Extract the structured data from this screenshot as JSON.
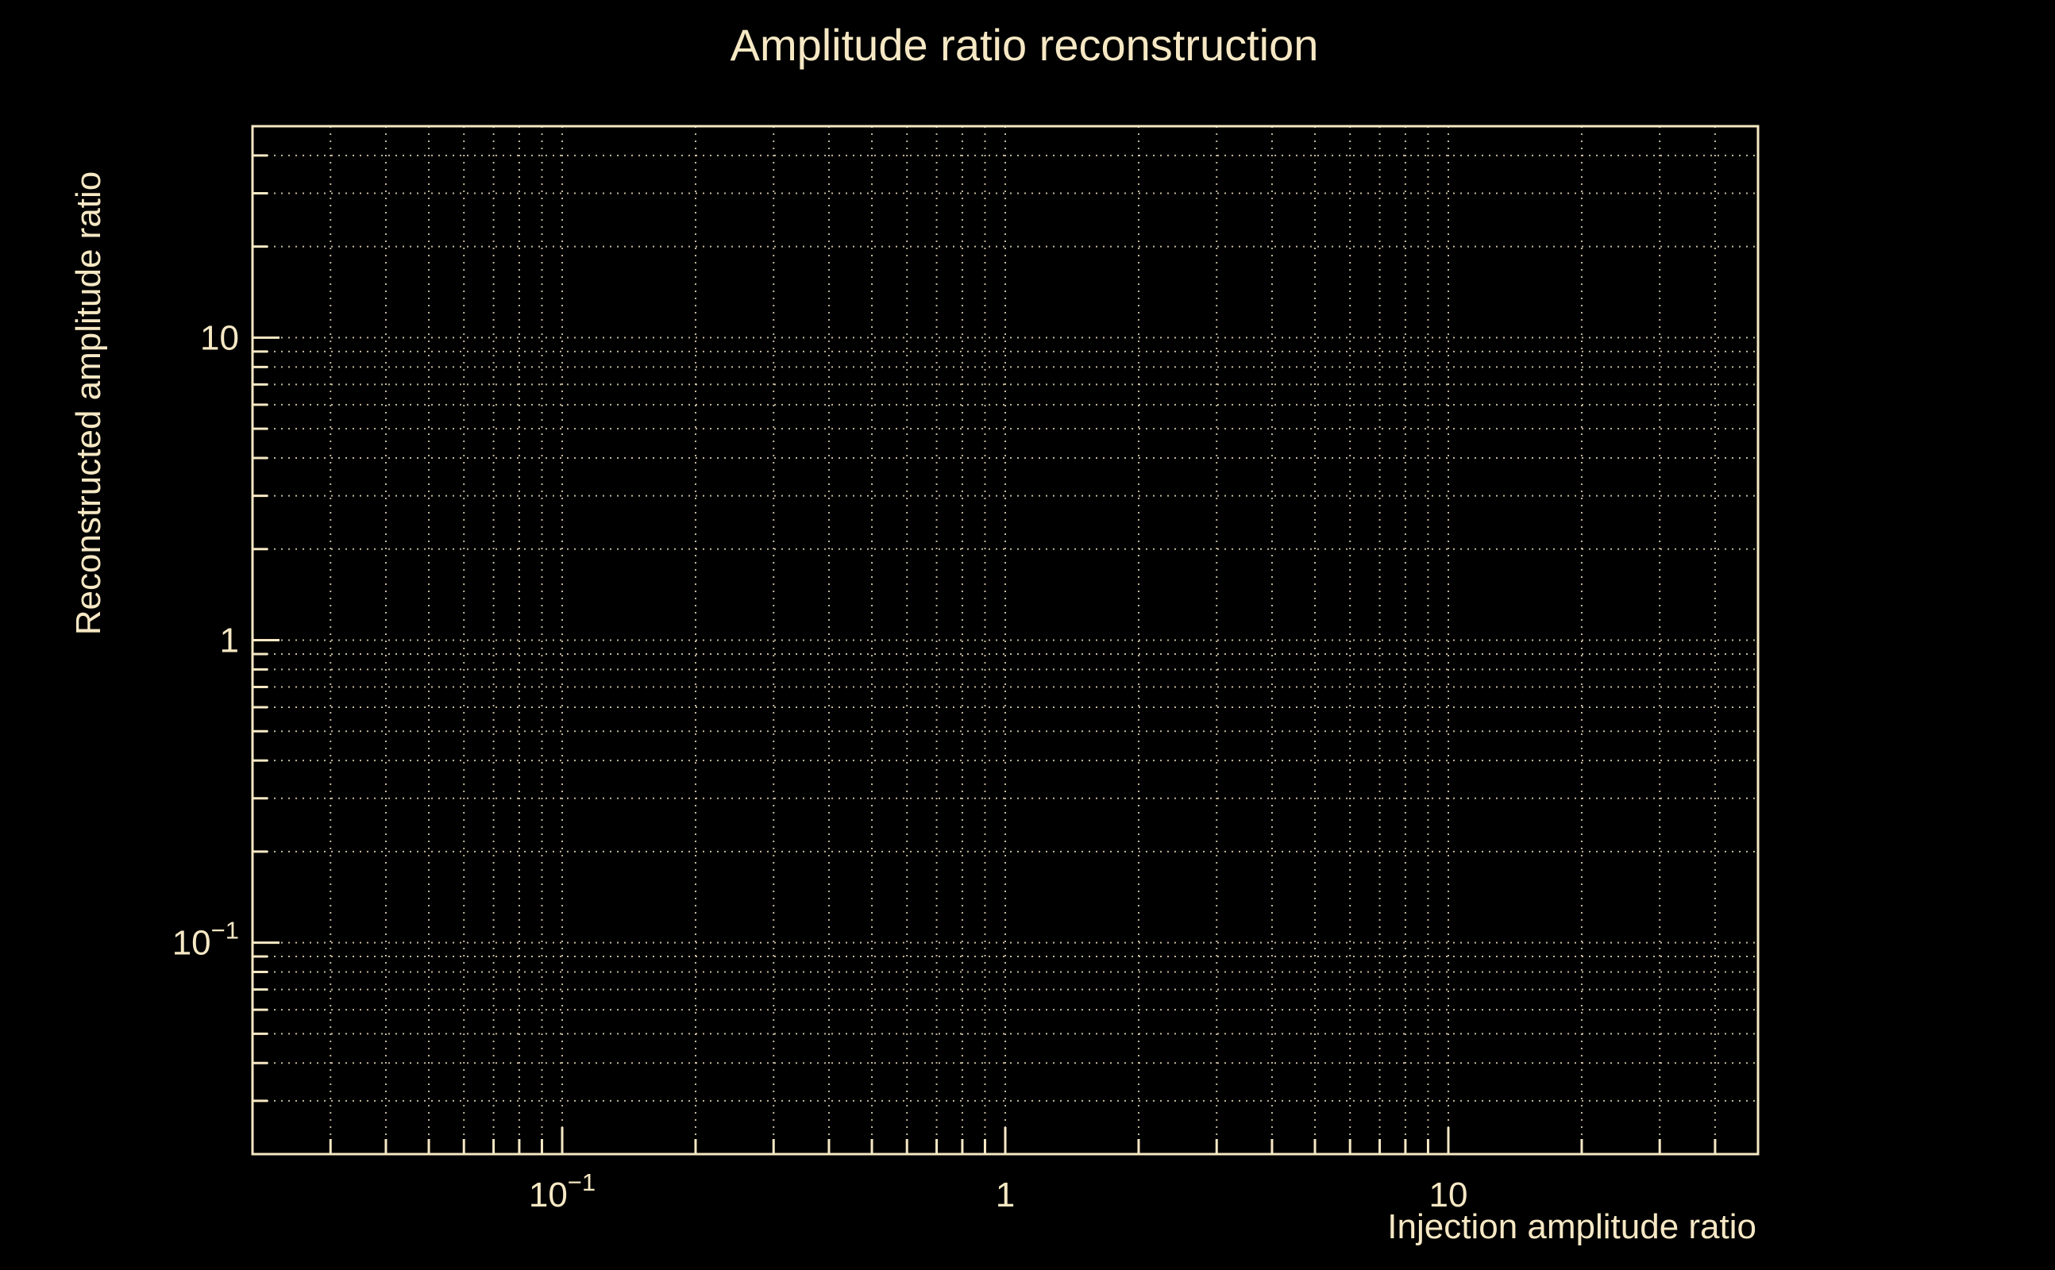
{
  "chart_data": {
    "type": "scatter",
    "title": "Amplitude ratio reconstruction",
    "xlabel": "Injection amplitude ratio",
    "ylabel": "Reconstructed amplitude ratio",
    "xscale": "log",
    "yscale": "log",
    "xlim": [
      0.02,
      50
    ],
    "ylim": [
      0.02,
      50
    ],
    "xticks": [
      {
        "value": 0.1,
        "label": "10^-1"
      },
      {
        "value": 1,
        "label": "1"
      },
      {
        "value": 10,
        "label": "10"
      }
    ],
    "yticks": [
      {
        "value": 0.1,
        "label": "10^-1"
      },
      {
        "value": 1,
        "label": "1"
      },
      {
        "value": 10,
        "label": "10"
      }
    ],
    "grid": true,
    "grid_style": "dotted",
    "series": []
  },
  "style": {
    "background": "#000000",
    "foreground": "#f6e8c4",
    "grid_color": "#f6e8c4"
  }
}
